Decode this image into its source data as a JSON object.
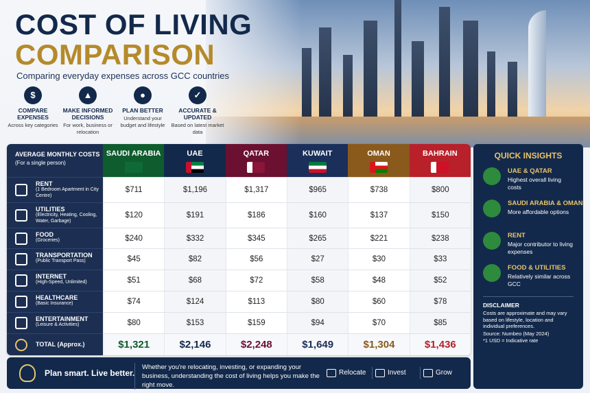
{
  "header": {
    "title_line1": "COST OF LIVING",
    "title_line2": "COMPARISON",
    "subtitle": "Comparing everyday expenses across GCC countries"
  },
  "features": [
    {
      "title": "COMPARE EXPENSES",
      "text": "Across key categories"
    },
    {
      "title": "MAKE INFORMED DECISIONS",
      "text": "For work, business or relocation"
    },
    {
      "title": "PLAN BETTER",
      "text": "Understand your budget and lifestyle"
    },
    {
      "title": "ACCURATE & UPDATED",
      "text": "Based on latest market data"
    }
  ],
  "table": {
    "header_label": "AVERAGE MONTHLY COSTS",
    "header_sub": "(For a single person)",
    "countries": [
      "SAUDI ARABIA",
      "UAE",
      "QATAR",
      "KUWAIT",
      "OMAN",
      "BAHRAIN"
    ],
    "rows": [
      {
        "label": "RENT",
        "detail": "(1 Bedroom Apartment in City Centre)",
        "values": [
          "$711",
          "$1,196",
          "$1,317",
          "$965",
          "$738",
          "$800"
        ]
      },
      {
        "label": "UTILITIES",
        "detail": "(Electricity, Heating, Cooling, Water, Garbage)",
        "values": [
          "$120",
          "$191",
          "$186",
          "$160",
          "$137",
          "$150"
        ]
      },
      {
        "label": "FOOD",
        "detail": "(Groceries)",
        "values": [
          "$240",
          "$332",
          "$345",
          "$265",
          "$221",
          "$238"
        ]
      },
      {
        "label": "TRANSPORTATION",
        "detail": "(Public Transport Pass)",
        "values": [
          "$45",
          "$82",
          "$56",
          "$27",
          "$30",
          "$33"
        ]
      },
      {
        "label": "INTERNET",
        "detail": "(High-Speed, Unlimited)",
        "values": [
          "$51",
          "$68",
          "$72",
          "$58",
          "$48",
          "$52"
        ]
      },
      {
        "label": "HEALTHCARE",
        "detail": "(Basic Insurance)",
        "values": [
          "$74",
          "$124",
          "$113",
          "$80",
          "$60",
          "$78"
        ]
      },
      {
        "label": "ENTERTAINMENT",
        "detail": "(Leisure & Activities)",
        "values": [
          "$80",
          "$153",
          "$159",
          "$94",
          "$70",
          "$85"
        ]
      }
    ],
    "total": {
      "label": "TOTAL (Approx.)",
      "values": [
        "$1,321",
        "$2,146",
        "$2,248",
        "$1,649",
        "$1,304",
        "$1,436"
      ]
    }
  },
  "insights": {
    "title": "QUICK INSIGHTS",
    "items": [
      {
        "title": "UAE & QATAR",
        "text": "Highest overall living costs"
      },
      {
        "title": "SAUDI ARABIA & OMAN",
        "text": "More affordable options"
      },
      {
        "title": "RENT",
        "text": "Major contributor to living expenses"
      },
      {
        "title": "FOOD & UTILITIES",
        "text": "Relatively similar across GCC"
      }
    ],
    "disclaimer_title": "DISCLAIMER",
    "disclaimer_text": "Costs are approximate and may vary based on lifestyle, location and individual preferences.",
    "source": "Source: Numbeo (May 2024)",
    "note": "*1 USD = Indicative rate"
  },
  "footer": {
    "slogan": "Plan smart. Live better.",
    "text": "Whether you're relocating, investing, or expanding your business, understanding the cost of living helps you make the right move.",
    "actions": [
      "Relocate",
      "Invest",
      "Grow"
    ]
  }
}
